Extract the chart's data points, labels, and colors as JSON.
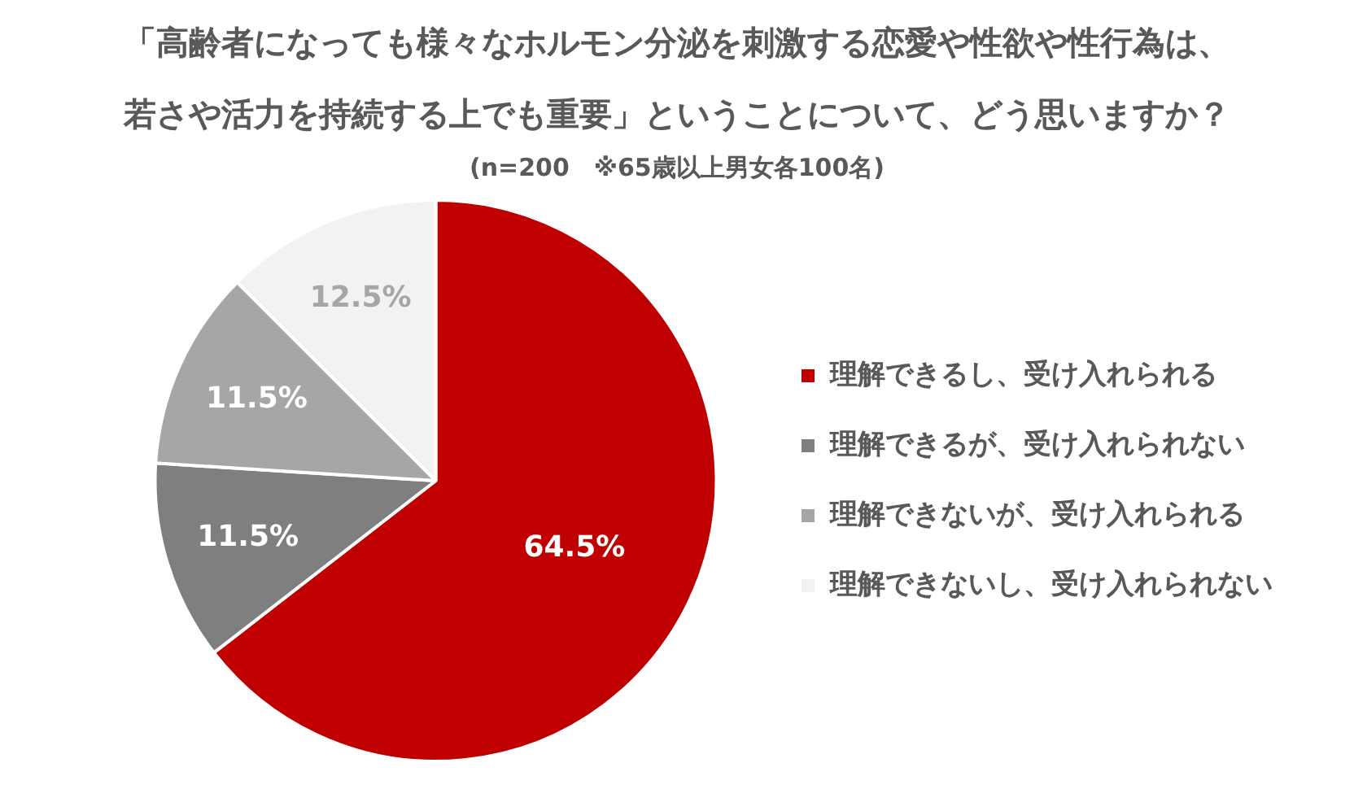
{
  "chart_data": {
    "type": "pie",
    "title": "「高齢者になっても様々なホルモン分泌を刺激する恋愛や性欲や性行為は、若さや活力を持続する上でも重要」ということについて、どう思いますか？",
    "subtitle": "(n=200　※65歳以上男女各100名)",
    "categories": [
      "理解できるし、受け入れられる",
      "理解できるが、受け入れられない",
      "理解できないが、受け入れられる",
      "理解できないし、受け入れられない"
    ],
    "values": [
      64.5,
      11.5,
      11.5,
      12.5
    ],
    "colors": [
      "#c00000",
      "#7f7f7f",
      "#a6a6a6",
      "#f2f2f2"
    ],
    "value_labels": [
      "64.5%",
      "11.5%",
      "11.5%",
      "12.5%"
    ],
    "legend": "right"
  }
}
